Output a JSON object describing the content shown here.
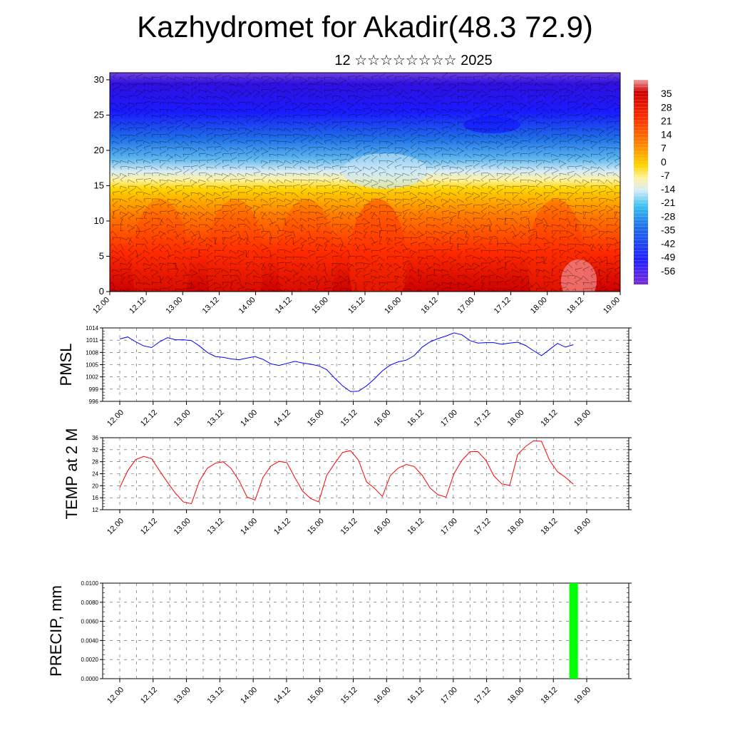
{
  "header": {
    "title": "Kazhydromet for Akadir(48.3 72.9)",
    "subtitle": "12 ☆☆☆☆☆☆☆☆ 2025"
  },
  "colors": {
    "pmsl_line": "#0000ff",
    "temp_line": "#ff0000",
    "precip_bar": "#00ff00",
    "barb": "#000000"
  },
  "chart_data": [
    {
      "type": "heatmap",
      "name": "cross-section",
      "title": "",
      "xlabel": "",
      "ylabel": "",
      "x_ticks": [
        "12.00",
        "12.12",
        "13.00",
        "13.12",
        "14.00",
        "14.12",
        "15.00",
        "15.12",
        "16.00",
        "16.12",
        "17.00",
        "17.12",
        "18.00",
        "18.12",
        "19.00"
      ],
      "y_ticks": [
        0,
        5,
        10,
        15,
        20,
        25,
        30
      ],
      "ylim": [
        0,
        31
      ],
      "colorbar_labels": [
        "35",
        "28",
        "21",
        "14",
        "7",
        "0",
        "-7",
        "-14",
        "-21",
        "-28",
        "-35",
        "-42",
        "-49",
        "-56"
      ],
      "colorbar_range": [
        -63,
        42
      ]
    },
    {
      "type": "line",
      "name": "pmsl",
      "ylabel": "PMSL",
      "x_ticks": [
        "12.00",
        "12.12",
        "13.00",
        "13.12",
        "14.00",
        "14.12",
        "15.00",
        "15.12",
        "16.00",
        "16.12",
        "17.00",
        "17.12",
        "18.00",
        "18.12",
        "19.00"
      ],
      "y_ticks": [
        "1014",
        "1011",
        "1008",
        "1005",
        "1002",
        "999",
        "996"
      ],
      "ylim": [
        996,
        1014
      ],
      "values": [
        1011.3,
        1011.8,
        1010.6,
        1009.6,
        1009.2,
        1010.6,
        1011.6,
        1011.1,
        1011.1,
        1010.9,
        1009.6,
        1008.0,
        1007.0,
        1006.8,
        1006.4,
        1006.2,
        1006.6,
        1007.0,
        1006.3,
        1005.2,
        1004.8,
        1005.3,
        1005.8,
        1005.4,
        1005.1,
        1004.7,
        1003.8,
        1001.7,
        999.8,
        998.4,
        998.5,
        999.8,
        1001.5,
        1003.5,
        1004.9,
        1005.7,
        1006.1,
        1007.2,
        1009.3,
        1010.6,
        1011.4,
        1012.0,
        1012.8,
        1012.3,
        1010.9,
        1010.3,
        1010.4,
        1010.4,
        1010.0,
        1010.3,
        1010.5,
        1009.7,
        1008.4,
        1007.2,
        1008.7,
        1010.2,
        1009.3,
        1009.9
      ]
    },
    {
      "type": "line",
      "name": "temp",
      "ylabel": "TEMP at 2 M",
      "x_ticks": [
        "12.00",
        "12.12",
        "13.00",
        "13.12",
        "14.00",
        "14.12",
        "15.00",
        "15.12",
        "16.00",
        "16.12",
        "17.00",
        "17.12",
        "18.00",
        "18.12",
        "19.00"
      ],
      "y_ticks": [
        "36",
        "32",
        "28",
        "24",
        "20",
        "16",
        "12"
      ],
      "ylim": [
        12,
        36
      ],
      "values": [
        19.4,
        25.0,
        28.7,
        29.8,
        29.0,
        25.0,
        21.1,
        17.5,
        14.6,
        14.0,
        21.5,
        25.8,
        27.5,
        28.0,
        25.7,
        21.7,
        16.2,
        15.2,
        22.8,
        26.6,
        28.1,
        27.7,
        22.7,
        18.1,
        15.7,
        14.6,
        23.4,
        27.4,
        31.1,
        31.7,
        28.5,
        21.3,
        19.2,
        16.4,
        23.4,
        25.9,
        27.1,
        26.4,
        23.5,
        19.2,
        17.0,
        16.2,
        24.0,
        28.5,
        31.3,
        31.4,
        28.5,
        23.3,
        20.6,
        20.1,
        30.4,
        33.1,
        35.0,
        34.8,
        28.5,
        24.7,
        22.8,
        20.5
      ]
    },
    {
      "type": "bar",
      "name": "precip",
      "ylabel": "PRECIP, mm",
      "x_ticks": [
        "12.00",
        "12.12",
        "13.00",
        "13.12",
        "14.00",
        "14.12",
        "15.00",
        "15.12",
        "16.00",
        "16.12",
        "17.00",
        "17.12",
        "18.00",
        "18.12",
        "19.00"
      ],
      "y_ticks": [
        "0.0100",
        "0.0080",
        "0.0060",
        "0.0040",
        "0.0020",
        "0.0000"
      ],
      "ylim": [
        0,
        0.01
      ],
      "bars": [
        {
          "x": "18.12",
          "value": 0.01
        }
      ]
    }
  ]
}
